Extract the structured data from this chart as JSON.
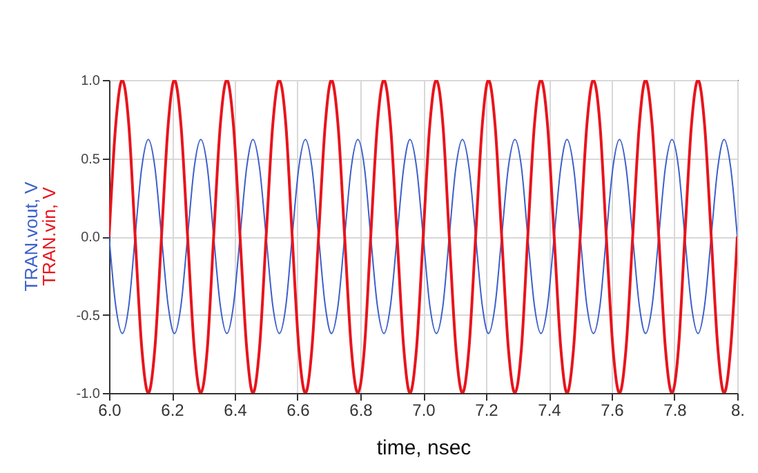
{
  "chart_data": {
    "type": "line",
    "xlabel": "time, nsec",
    "x": [
      6.0,
      6.021,
      6.042,
      6.063,
      6.083,
      6.104,
      6.125,
      6.146,
      6.167,
      6.188,
      6.208,
      6.229,
      6.25,
      6.271,
      6.292,
      6.313,
      6.333,
      6.354,
      6.375,
      6.396,
      6.417,
      6.438,
      6.458,
      6.479,
      6.5,
      6.521,
      6.542,
      6.563,
      6.583,
      6.604,
      6.625,
      6.646,
      6.667,
      6.688,
      6.708,
      6.729,
      6.75,
      6.771,
      6.792,
      6.813,
      6.833,
      6.854,
      6.875,
      6.896,
      6.917,
      6.938,
      6.958,
      6.979,
      7.0,
      7.021,
      7.042,
      7.063,
      7.083,
      7.104,
      7.125,
      7.146,
      7.167,
      7.188,
      7.208,
      7.229,
      7.25,
      7.271,
      7.292,
      7.313,
      7.333,
      7.354,
      7.375,
      7.396,
      7.417,
      7.438,
      7.458,
      7.479,
      7.5,
      7.521,
      7.542,
      7.563,
      7.583,
      7.604,
      7.625,
      7.646,
      7.667,
      7.688,
      7.708,
      7.729,
      7.75,
      7.771,
      7.792,
      7.813,
      7.833,
      7.854,
      7.875,
      7.896,
      7.917,
      7.938,
      7.958,
      7.979,
      8.0
    ],
    "series": [
      {
        "name": "TRAN.vout, V",
        "color": "#3c5fcc",
        "values": [
          0,
          -0.44,
          -0.62,
          -0.44,
          0,
          0.44,
          0.62,
          0.44,
          0,
          -0.44,
          -0.62,
          -0.44,
          0,
          0.44,
          0.62,
          0.44,
          0,
          -0.44,
          -0.62,
          -0.44,
          0,
          0.44,
          0.62,
          0.44,
          0,
          -0.44,
          -0.62,
          -0.44,
          0,
          0.44,
          0.62,
          0.44,
          0,
          -0.44,
          -0.62,
          -0.44,
          0,
          0.44,
          0.62,
          0.44,
          0,
          -0.44,
          -0.62,
          -0.44,
          0,
          0.44,
          0.62,
          0.44,
          0,
          -0.44,
          -0.62,
          -0.44,
          0,
          0.44,
          0.62,
          0.44,
          0,
          -0.44,
          -0.62,
          -0.44,
          0,
          0.44,
          0.62,
          0.44,
          0,
          -0.44,
          -0.62,
          -0.44,
          0,
          0.44,
          0.62,
          0.44,
          0,
          -0.44,
          -0.62,
          -0.44,
          0,
          0.44,
          0.62,
          0.44,
          0,
          -0.44,
          -0.62,
          -0.44,
          0,
          0.44,
          0.62,
          0.44,
          0,
          -0.44,
          -0.62,
          -0.44,
          0,
          0.44,
          0.62,
          0.44,
          0
        ]
      },
      {
        "name": "TRAN.vin, V",
        "color": "#e8141c",
        "values": [
          0,
          0.71,
          1,
          0.71,
          0,
          -0.71,
          -1,
          -0.71,
          0,
          0.71,
          1,
          0.71,
          0,
          -0.71,
          -1,
          -0.71,
          0,
          0.71,
          1,
          0.71,
          0,
          -0.71,
          -1,
          -0.71,
          0,
          0.71,
          1,
          0.71,
          0,
          -0.71,
          -1,
          -0.71,
          0,
          0.71,
          1,
          0.71,
          0,
          -0.71,
          -1,
          -0.71,
          0,
          0.71,
          1,
          0.71,
          0,
          -0.71,
          -1,
          -0.71,
          0,
          0.71,
          1,
          0.71,
          0,
          -0.71,
          -1,
          -0.71,
          0,
          0.71,
          1,
          0.71,
          0,
          -0.71,
          -1,
          -0.71,
          0,
          0.71,
          1,
          0.71,
          0,
          -0.71,
          -1,
          -0.71,
          0,
          0.71,
          1,
          0.71,
          0,
          -0.71,
          -1,
          -0.71,
          0,
          0.71,
          1,
          0.71,
          0,
          -0.71,
          -1,
          -0.71,
          0,
          0.71,
          1,
          0.71,
          0,
          -0.71,
          -1,
          -0.71,
          0
        ]
      }
    ],
    "xlim": [
      6,
      8
    ],
    "xticks": [
      {
        "value": 6,
        "label": "6.0"
      },
      6.2,
      6.4,
      6.6,
      6.8,
      {
        "value": 7,
        "label": "7.0"
      },
      7.2,
      7.4,
      7.6,
      7.8,
      {
        "value": 8,
        "label": "8."
      }
    ],
    "ylim": [
      -1,
      1
    ],
    "yticks": [
      {
        "value": -1,
        "label": "-1.0"
      },
      -0.5,
      {
        "value": 0,
        "label": "0.0"
      },
      0.5,
      {
        "value": 1,
        "label": "1.0"
      }
    ],
    "grid": true
  }
}
